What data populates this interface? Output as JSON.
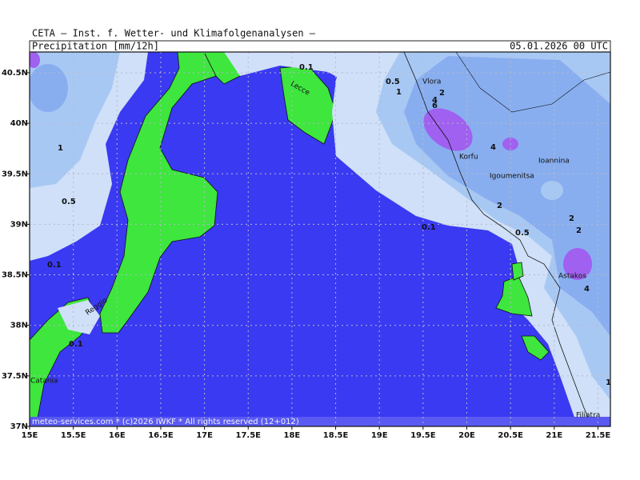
{
  "header": {
    "institute": "CETA – Inst. f. Wetter- und Klimafolgenanalysen –",
    "parameter": "Precipitation [mm/12h]",
    "valid_time": "05.01.2026 00 UTC"
  },
  "footer": "meteo-services.com * (c)2026 IWKF * All rights reserved (12+012)",
  "map": {
    "x_ticks": [
      {
        "value": 15,
        "label": "15E"
      },
      {
        "value": 15.5,
        "label": "15.5E"
      },
      {
        "value": 16,
        "label": "16E"
      },
      {
        "value": 16.5,
        "label": "16.5E"
      },
      {
        "value": 17,
        "label": "17E"
      },
      {
        "value": 17.5,
        "label": "17.5E"
      },
      {
        "value": 18,
        "label": "18E"
      },
      {
        "value": 18.5,
        "label": "18.5E"
      },
      {
        "value": 19,
        "label": "19E"
      },
      {
        "value": 19.5,
        "label": "19.5E"
      },
      {
        "value": 20,
        "label": "20E"
      },
      {
        "value": 20.5,
        "label": "20.5E"
      },
      {
        "value": 21,
        "label": "21E"
      },
      {
        "value": 21.5,
        "label": "21.5E"
      }
    ],
    "y_ticks": [
      {
        "value": 40.5,
        "label": "40.5N"
      },
      {
        "value": 40,
        "label": "40N"
      },
      {
        "value": 39.5,
        "label": "39.5N"
      },
      {
        "value": 39,
        "label": "39N"
      },
      {
        "value": 38.5,
        "label": "38.5N"
      },
      {
        "value": 38,
        "label": "38N"
      },
      {
        "value": 37.5,
        "label": "37.5N"
      },
      {
        "value": 37,
        "label": "37N"
      }
    ],
    "places": [
      "Lecce",
      "Vlora",
      "Korfu",
      "Igoumenitsa",
      "Ioannina",
      "Reggio",
      "Astakos",
      "Filiatra",
      "Catania"
    ],
    "contour_labels": [
      "0.1",
      "0.5",
      "1",
      "2",
      "4",
      "6",
      "1",
      "0.5",
      "0.1",
      "0.1",
      "0.1",
      "2",
      "2",
      "2",
      "0.5",
      "4",
      "4",
      "1"
    ]
  }
}
